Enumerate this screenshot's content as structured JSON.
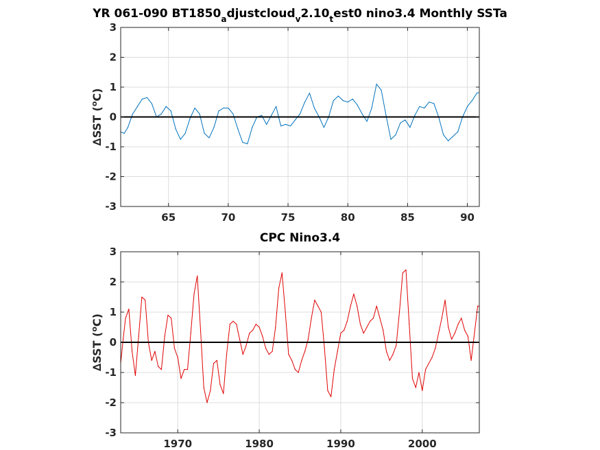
{
  "chart_data": [
    {
      "type": "line",
      "title_parts": [
        {
          "t": "YR 061-090 BT1850",
          "s": "n"
        },
        {
          "t": "a",
          "s": "sub"
        },
        {
          "t": "djustcloud",
          "s": "n"
        },
        {
          "t": "v",
          "s": "sub"
        },
        {
          "t": "2.10",
          "s": "n"
        },
        {
          "t": "t",
          "s": "sub"
        },
        {
          "t": "est0 nino3.4 Monthly SSTa",
          "s": "n"
        }
      ],
      "ylabel_parts": [
        {
          "t": "∆SST (",
          "s": "n"
        },
        {
          "t": "o",
          "s": "sup"
        },
        {
          "t": "C)",
          "s": "n"
        }
      ],
      "xlim": [
        61,
        91
      ],
      "ylim": [
        -3,
        3
      ],
      "xticks": [
        65,
        70,
        75,
        80,
        85,
        90
      ],
      "xtick_labels": [
        "65",
        "70",
        "75",
        "80",
        "85",
        "90"
      ],
      "yticks": [
        -3,
        -2,
        -1,
        0,
        1,
        2,
        3
      ],
      "ytick_labels": [
        "-3",
        "-2",
        "-1",
        "0",
        "1",
        "2",
        "3"
      ],
      "grid": true,
      "zero_line": true,
      "series": [
        {
          "color": "#0072BD",
          "x": [
            61.0,
            61.3,
            61.6,
            62.0,
            62.4,
            62.8,
            63.2,
            63.6,
            64.0,
            64.4,
            64.8,
            65.2,
            65.6,
            66.0,
            66.4,
            66.8,
            67.2,
            67.6,
            68.0,
            68.4,
            68.8,
            69.2,
            69.6,
            70.0,
            70.4,
            70.8,
            71.2,
            71.6,
            72.0,
            72.4,
            72.8,
            73.2,
            73.6,
            74.0,
            74.4,
            74.8,
            75.2,
            75.6,
            76.0,
            76.4,
            76.8,
            77.2,
            77.6,
            78.0,
            78.4,
            78.8,
            79.2,
            79.6,
            80.0,
            80.4,
            80.8,
            81.2,
            81.6,
            82.0,
            82.4,
            82.8,
            83.2,
            83.6,
            84.0,
            84.4,
            84.8,
            85.2,
            85.6,
            86.0,
            86.4,
            86.8,
            87.2,
            87.6,
            88.0,
            88.4,
            88.8,
            89.2,
            89.6,
            90.0,
            90.4,
            90.8,
            91.0
          ],
          "y": [
            -0.5,
            -0.55,
            -0.35,
            0.1,
            0.35,
            0.6,
            0.65,
            0.45,
            0.0,
            0.1,
            0.35,
            0.2,
            -0.4,
            -0.75,
            -0.55,
            -0.05,
            0.3,
            0.1,
            -0.55,
            -0.7,
            -0.35,
            0.2,
            0.3,
            0.3,
            0.1,
            -0.4,
            -0.85,
            -0.9,
            -0.35,
            0.0,
            0.05,
            -0.25,
            0.05,
            0.35,
            -0.3,
            -0.25,
            -0.3,
            -0.1,
            0.1,
            0.5,
            0.8,
            0.3,
            0.0,
            -0.35,
            0.0,
            0.55,
            0.7,
            0.55,
            0.5,
            0.6,
            0.4,
            0.1,
            -0.15,
            0.3,
            1.1,
            0.9,
            0.05,
            -0.75,
            -0.6,
            -0.2,
            -0.1,
            -0.35,
            0.05,
            0.35,
            0.3,
            0.5,
            0.45,
            0.0,
            -0.6,
            -0.8,
            -0.65,
            -0.5,
            0.0,
            0.35,
            0.55,
            0.8,
            0.82
          ]
        }
      ]
    },
    {
      "type": "line",
      "title_parts": [
        {
          "t": "CPC Nino3.4",
          "s": "n"
        }
      ],
      "ylabel_parts": [
        {
          "t": "∆SST (",
          "s": "n"
        },
        {
          "t": "o",
          "s": "sup"
        },
        {
          "t": "C)",
          "s": "n"
        }
      ],
      "xlim": [
        1963,
        2007
      ],
      "ylim": [
        -3,
        3
      ],
      "xticks": [
        1970,
        1980,
        1990,
        2000
      ],
      "xtick_labels": [
        "1970",
        "1980",
        "1990",
        "2000"
      ],
      "yticks": [
        -3,
        -2,
        -1,
        0,
        1,
        2,
        3
      ],
      "ytick_labels": [
        "-3",
        "-2",
        "-1",
        "0",
        "1",
        "2",
        "3"
      ],
      "grid": true,
      "zero_line": true,
      "series": [
        {
          "color": "#E00000",
          "x": [
            1963.0,
            1963.3,
            1963.6,
            1964.0,
            1964.4,
            1964.8,
            1965.2,
            1965.6,
            1966.0,
            1966.4,
            1966.8,
            1967.2,
            1967.6,
            1968.0,
            1968.4,
            1968.8,
            1969.2,
            1969.6,
            1970.0,
            1970.4,
            1970.8,
            1971.2,
            1971.6,
            1972.0,
            1972.4,
            1972.8,
            1973.2,
            1973.6,
            1974.0,
            1974.4,
            1974.8,
            1975.2,
            1975.6,
            1976.0,
            1976.4,
            1976.8,
            1977.2,
            1977.6,
            1978.0,
            1978.4,
            1978.8,
            1979.2,
            1979.6,
            1980.0,
            1980.4,
            1980.8,
            1981.2,
            1981.6,
            1982.0,
            1982.4,
            1982.8,
            1983.2,
            1983.6,
            1984.0,
            1984.4,
            1984.8,
            1985.2,
            1985.6,
            1986.0,
            1986.4,
            1986.8,
            1987.2,
            1987.6,
            1988.0,
            1988.4,
            1988.8,
            1989.2,
            1989.6,
            1990.0,
            1990.4,
            1990.8,
            1991.2,
            1991.6,
            1992.0,
            1992.4,
            1992.8,
            1993.2,
            1993.6,
            1994.0,
            1994.4,
            1994.8,
            1995.2,
            1995.6,
            1996.0,
            1996.4,
            1996.8,
            1997.2,
            1997.6,
            1998.0,
            1998.4,
            1998.8,
            1999.2,
            1999.6,
            2000.0,
            2000.4,
            2000.8,
            2001.2,
            2001.6,
            2002.0,
            2002.4,
            2002.8,
            2003.2,
            2003.6,
            2004.0,
            2004.4,
            2004.8,
            2005.2,
            2005.6,
            2006.0,
            2006.4,
            2006.8,
            2007.0
          ],
          "y": [
            -0.7,
            0.1,
            0.8,
            1.1,
            -0.3,
            -1.1,
            0.2,
            1.5,
            1.4,
            0.0,
            -0.6,
            -0.3,
            -0.8,
            -0.9,
            0.2,
            0.9,
            0.8,
            -0.2,
            -0.5,
            -1.2,
            -0.9,
            -0.9,
            0.3,
            1.6,
            2.2,
            0.4,
            -1.5,
            -2.0,
            -1.6,
            -0.7,
            -0.6,
            -1.4,
            -1.7,
            -0.4,
            0.6,
            0.7,
            0.6,
            0.1,
            -0.4,
            -0.1,
            0.3,
            0.4,
            0.6,
            0.5,
            0.2,
            -0.2,
            -0.4,
            -0.3,
            0.5,
            1.8,
            2.3,
            1.0,
            -0.4,
            -0.6,
            -0.9,
            -1.0,
            -0.6,
            -0.3,
            0.1,
            0.8,
            1.4,
            1.2,
            1.0,
            -0.2,
            -1.6,
            -1.8,
            -0.9,
            -0.3,
            0.3,
            0.4,
            0.7,
            1.2,
            1.6,
            1.2,
            0.6,
            0.3,
            0.5,
            0.7,
            0.8,
            1.2,
            0.8,
            0.4,
            -0.3,
            -0.6,
            -0.4,
            -0.1,
            1.0,
            2.3,
            2.4,
            0.6,
            -1.2,
            -1.5,
            -1.0,
            -1.6,
            -0.9,
            -0.7,
            -0.5,
            -0.2,
            0.3,
            0.8,
            1.4,
            0.5,
            0.1,
            0.3,
            0.6,
            0.8,
            0.4,
            0.2,
            -0.6,
            0.3,
            1.2,
            1.2
          ]
        }
      ]
    }
  ]
}
